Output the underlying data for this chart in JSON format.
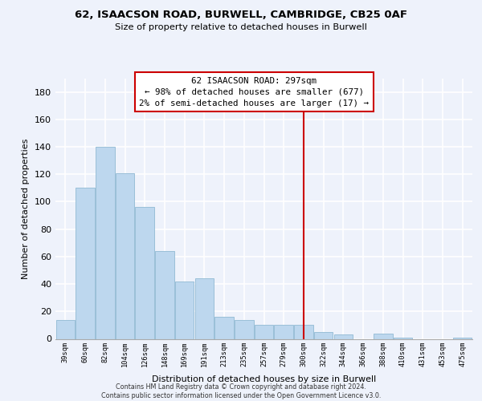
{
  "title": "62, ISAACSON ROAD, BURWELL, CAMBRIDGE, CB25 0AF",
  "subtitle": "Size of property relative to detached houses in Burwell",
  "xlabel": "Distribution of detached houses by size in Burwell",
  "ylabel": "Number of detached properties",
  "categories": [
    "39sqm",
    "60sqm",
    "82sqm",
    "104sqm",
    "126sqm",
    "148sqm",
    "169sqm",
    "191sqm",
    "213sqm",
    "235sqm",
    "257sqm",
    "279sqm",
    "300sqm",
    "322sqm",
    "344sqm",
    "366sqm",
    "388sqm",
    "410sqm",
    "431sqm",
    "453sqm",
    "475sqm"
  ],
  "values": [
    14,
    110,
    140,
    121,
    96,
    64,
    42,
    44,
    16,
    14,
    10,
    10,
    10,
    5,
    3,
    0,
    4,
    1,
    0,
    0,
    1
  ],
  "bar_color": "#bdd7ee",
  "bar_edge_color": "#9abfd8",
  "vline_x_index": 12,
  "vline_color": "#cc0000",
  "annotation_title": "62 ISAACSON ROAD: 297sqm",
  "annotation_line1": "← 98% of detached houses are smaller (677)",
  "annotation_line2": "2% of semi-detached houses are larger (17) →",
  "ylim": [
    0,
    190
  ],
  "yticks": [
    0,
    20,
    40,
    60,
    80,
    100,
    120,
    140,
    160,
    180
  ],
  "footer_line1": "Contains HM Land Registry data © Crown copyright and database right 2024.",
  "footer_line2": "Contains public sector information licensed under the Open Government Licence v3.0.",
  "background_color": "#eef2fb"
}
